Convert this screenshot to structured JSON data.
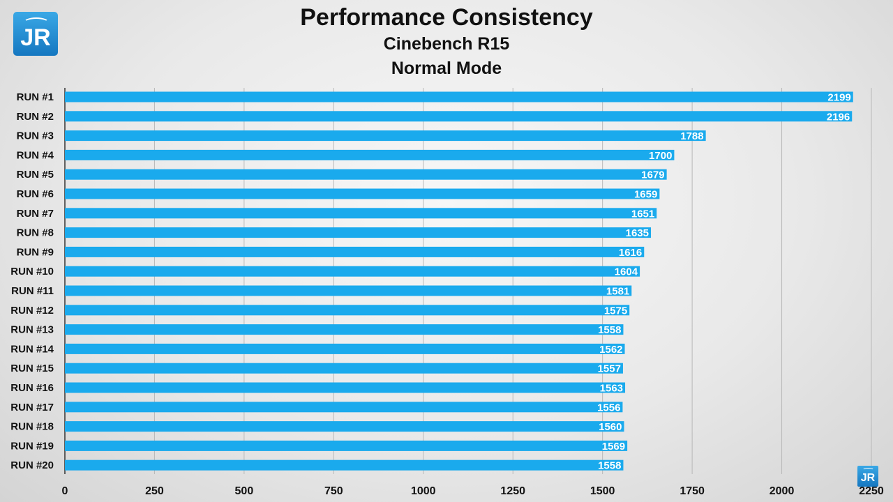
{
  "chart_data": {
    "type": "bar",
    "orientation": "horizontal",
    "title": "Performance Consistency",
    "subtitle": "Cinebench R15",
    "subtitle2": "Normal Mode",
    "categories": [
      "RUN #1",
      "RUN #2",
      "RUN #3",
      "RUN #4",
      "RUN #5",
      "RUN #6",
      "RUN #7",
      "RUN #8",
      "RUN #9",
      "RUN #10",
      "RUN #11",
      "RUN #12",
      "RUN #13",
      "RUN #14",
      "RUN #15",
      "RUN #16",
      "RUN #17",
      "RUN #18",
      "RUN #19",
      "RUN #20"
    ],
    "values": [
      2199,
      2196,
      1788,
      1700,
      1679,
      1659,
      1651,
      1635,
      1616,
      1604,
      1581,
      1575,
      1558,
      1562,
      1557,
      1563,
      1556,
      1560,
      1569,
      1558
    ],
    "xlim": [
      0,
      2250
    ],
    "xticks": [
      0,
      250,
      500,
      750,
      1000,
      1250,
      1500,
      1750,
      2000,
      2250
    ],
    "grid": true,
    "bar_color": "#1aaaed",
    "xlabel": "",
    "ylabel": ""
  },
  "logo": {
    "text": "JR"
  }
}
